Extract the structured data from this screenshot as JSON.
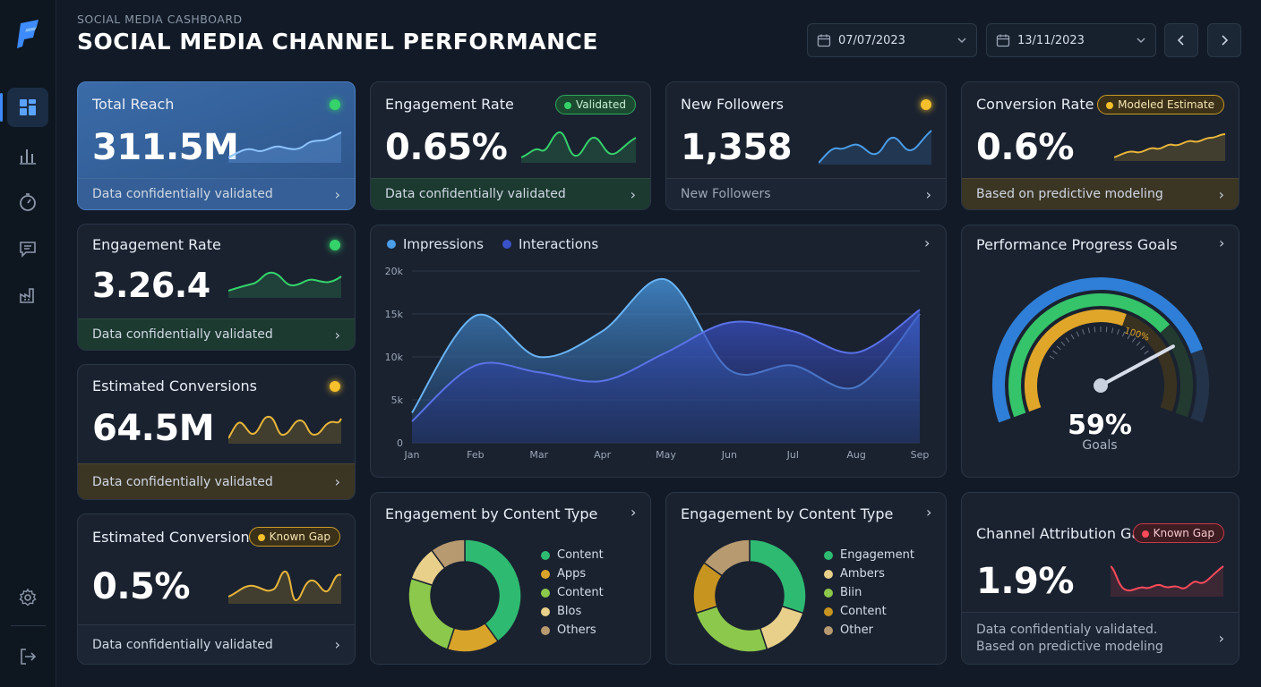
{
  "header": {
    "subtitle": "SOCIAL MEDIA CASHBOARD",
    "title": "SOCIAL MEDIA CHANNEL PERFORMANCE",
    "date_start": "07/07/2023",
    "date_end": "13/11/2023"
  },
  "icons": {
    "logo": "app-logo-icon",
    "nav": [
      "dashboard-icon",
      "bar-chart-icon",
      "timer-icon",
      "chat-icon",
      "factory-icon"
    ],
    "settings": "gear-icon",
    "logout": "logout-icon"
  },
  "colors": {
    "accent_blue": "#3d8bff",
    "green": "#35d26a",
    "gold": "#f5c02b",
    "red": "#ff4a5a",
    "impressions": "#4a9de8",
    "interactions": "#3a52c8"
  },
  "kpis": {
    "total_reach": {
      "title": "Total Reach",
      "value": "311.5M",
      "footer": "Data confidentially validated"
    },
    "engagement_rate_top": {
      "title": "Engagement Rate",
      "badge": "Validated",
      "value": "0.65%",
      "footer": "Data confidentially validated"
    },
    "new_followers": {
      "title": "New Followers",
      "value": "1,358",
      "footer": "New Followers"
    },
    "conversion_rate": {
      "title": "Conversion Rate",
      "badge": "Modeled Estimate",
      "value": "0.6%",
      "footer": "Based on predictive modeling"
    },
    "engagement_rate_left": {
      "title": "Engagement Rate",
      "value": "3.26.4",
      "footer": "Data confidentially validated"
    },
    "estimated_conversions_1": {
      "title": "Estimated Conversions",
      "value": "64.5M",
      "footer": "Data confidentially validated"
    },
    "estimated_conversions_2": {
      "title": "Estimated Conversions",
      "badge": "Known Gap",
      "value": "0.5%",
      "footer": "Data confidentially validated"
    },
    "attribution_gap": {
      "title": "Channel Attribution Gap",
      "badge": "Known Gap",
      "value": "1.9%",
      "footer_line1": "Data confidentialy validated.",
      "footer_line2": "Based on predictive modeling"
    }
  },
  "gauge": {
    "title": "Performance Progress Goals",
    "value": "59%",
    "label": "Goals",
    "tick_label": "100%",
    "progress": 0.59
  },
  "chart_data": {
    "type": "area",
    "categories": [
      "Jan",
      "Feb",
      "Mar",
      "Apr",
      "May",
      "Jun",
      "Jul",
      "Aug",
      "Sep"
    ],
    "series": [
      {
        "name": "Impressions",
        "values": [
          3500,
          14800,
          10000,
          13000,
          19000,
          8500,
          9000,
          6500,
          15000
        ]
      },
      {
        "name": "Interactions",
        "values": [
          2500,
          9000,
          8200,
          7200,
          10500,
          14000,
          13000,
          10500,
          15500
        ]
      }
    ],
    "yticks": [
      "0",
      "5k",
      "10k",
      "15k",
      "20k"
    ],
    "ylim": [
      0,
      20000
    ],
    "grid": true,
    "legend": "top-left"
  },
  "donut_1": {
    "title": "Engagement by Content Type",
    "items": [
      {
        "label": "Content",
        "value": 40,
        "color": "#2fba72"
      },
      {
        "label": "Apps",
        "value": 15,
        "color": "#d9a42a"
      },
      {
        "label": "Content",
        "value": 25,
        "color": "#8cc84b"
      },
      {
        "label": "Blos",
        "value": 10,
        "color": "#e8cf8a"
      },
      {
        "label": "Others",
        "value": 10,
        "color": "#b89a70"
      }
    ]
  },
  "donut_2": {
    "title": "Engagement by Content Type",
    "items": [
      {
        "label": "Engagement",
        "value": 30,
        "color": "#2fba72"
      },
      {
        "label": "Ambers",
        "value": 15,
        "color": "#e8cf8a"
      },
      {
        "label": "Biin",
        "value": 25,
        "color": "#8cc84b"
      },
      {
        "label": "Content",
        "value": 15,
        "color": "#c89420"
      },
      {
        "label": "Other",
        "value": 15,
        "color": "#b89a70"
      }
    ]
  }
}
